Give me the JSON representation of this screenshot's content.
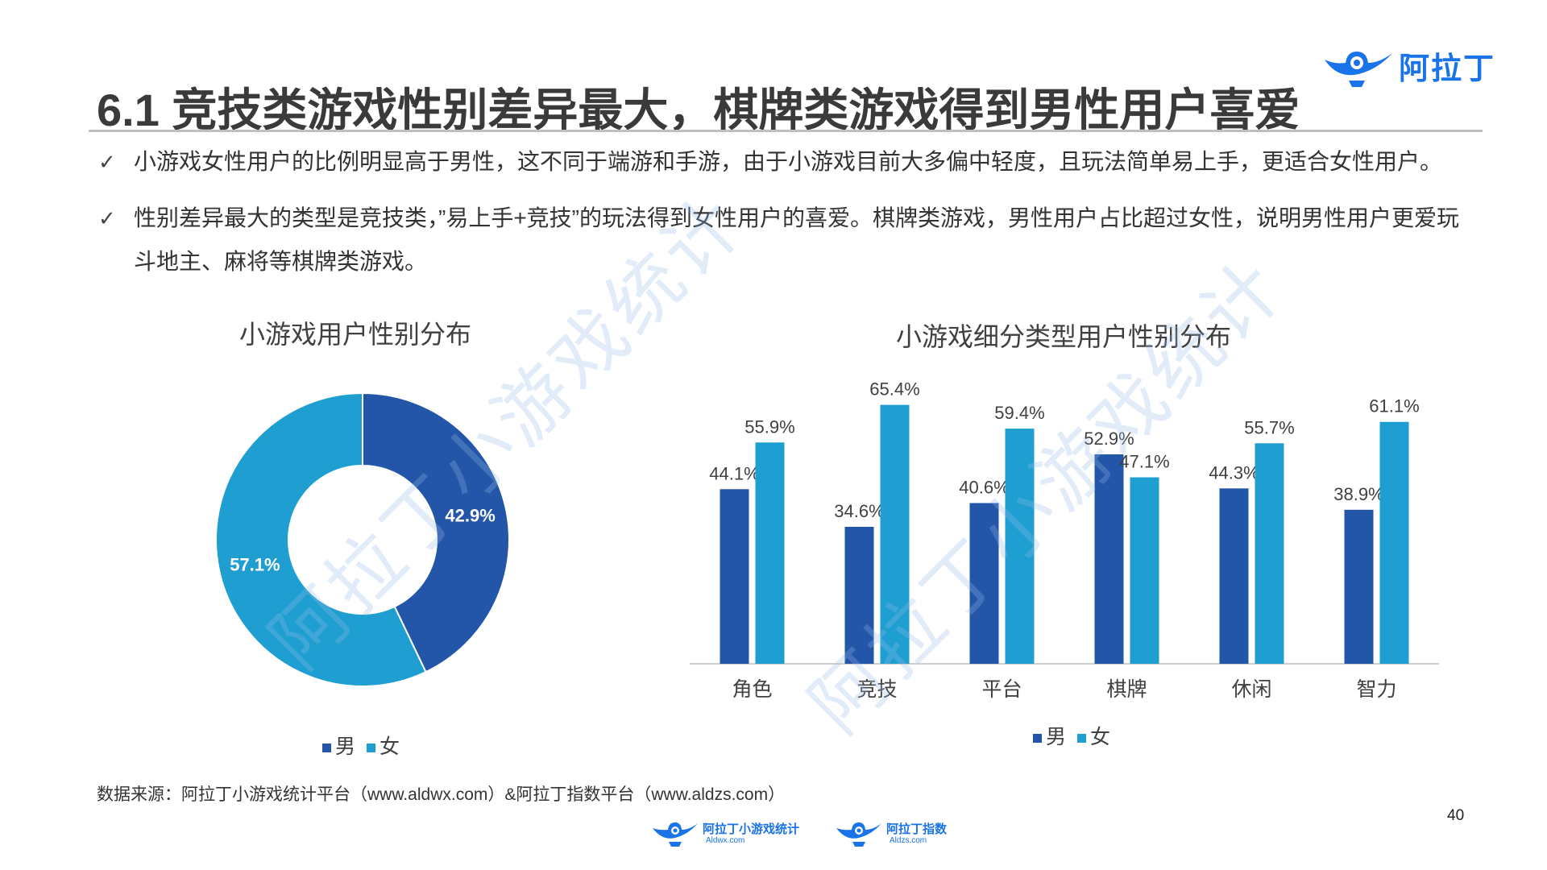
{
  "header": {
    "brand": "阿拉丁",
    "title": "6.1 竞技类游戏性别差异最大，棋牌类游戏得到男性用户喜爱"
  },
  "bullets": [
    {
      "check": "✓",
      "text": "小游戏女性用户的比例明显高于男性，这不同于端游和手游，由于小游戏目前大多偏中轻度，且玩法简单易上手，更适合女性用户。"
    },
    {
      "check": "✓",
      "text": "性别差异最大的类型是竞技类，”易上手+竞技”的玩法得到女性用户的喜爱。棋牌类游戏，男性用户占比超过女性，说明男性用户更爱玩斗地主、麻将等棋牌类游戏。"
    }
  ],
  "colors": {
    "male": "#2356a8",
    "female": "#1f9fd1"
  },
  "chart_data": [
    {
      "type": "pie",
      "title": "小游戏用户性别分布",
      "labels": [
        "男",
        "女"
      ],
      "values": [
        42.9,
        57.1
      ],
      "value_labels": [
        "42.9%",
        "57.1%"
      ],
      "legend": "bottom"
    },
    {
      "type": "bar",
      "title": "小游戏细分类型用户性别分布",
      "categories": [
        "角色",
        "竞技",
        "平台",
        "棋牌",
        "休闲",
        "智力"
      ],
      "series": [
        {
          "name": "男",
          "values": [
            44.1,
            34.6,
            40.6,
            52.9,
            44.3,
            38.9
          ],
          "labels": [
            "44.1%",
            "34.6%",
            "40.6%",
            "52.9%",
            "44.3%",
            "38.9%"
          ]
        },
        {
          "name": "女",
          "values": [
            55.9,
            65.4,
            59.4,
            47.1,
            55.7,
            61.1
          ],
          "labels": [
            "55.9%",
            "65.4%",
            "59.4%",
            "47.1%",
            "55.7%",
            "61.1%"
          ]
        }
      ],
      "ylim": [
        0,
        70
      ],
      "grid": false,
      "legend": "bottom"
    }
  ],
  "legend": {
    "male": "男",
    "female": "女"
  },
  "watermark": "阿拉丁小游戏统计",
  "source": "数据来源：阿拉丁小游戏统计平台（www.aldwx.com）&阿拉丁指数平台（www.aldzs.com）",
  "footer": {
    "logo1_name": "阿拉丁小游戏统计",
    "logo1_sub": "Aldwx.com",
    "logo2_name": "阿拉丁指数",
    "logo2_sub": "Aldzs.com"
  },
  "page_number": "40"
}
